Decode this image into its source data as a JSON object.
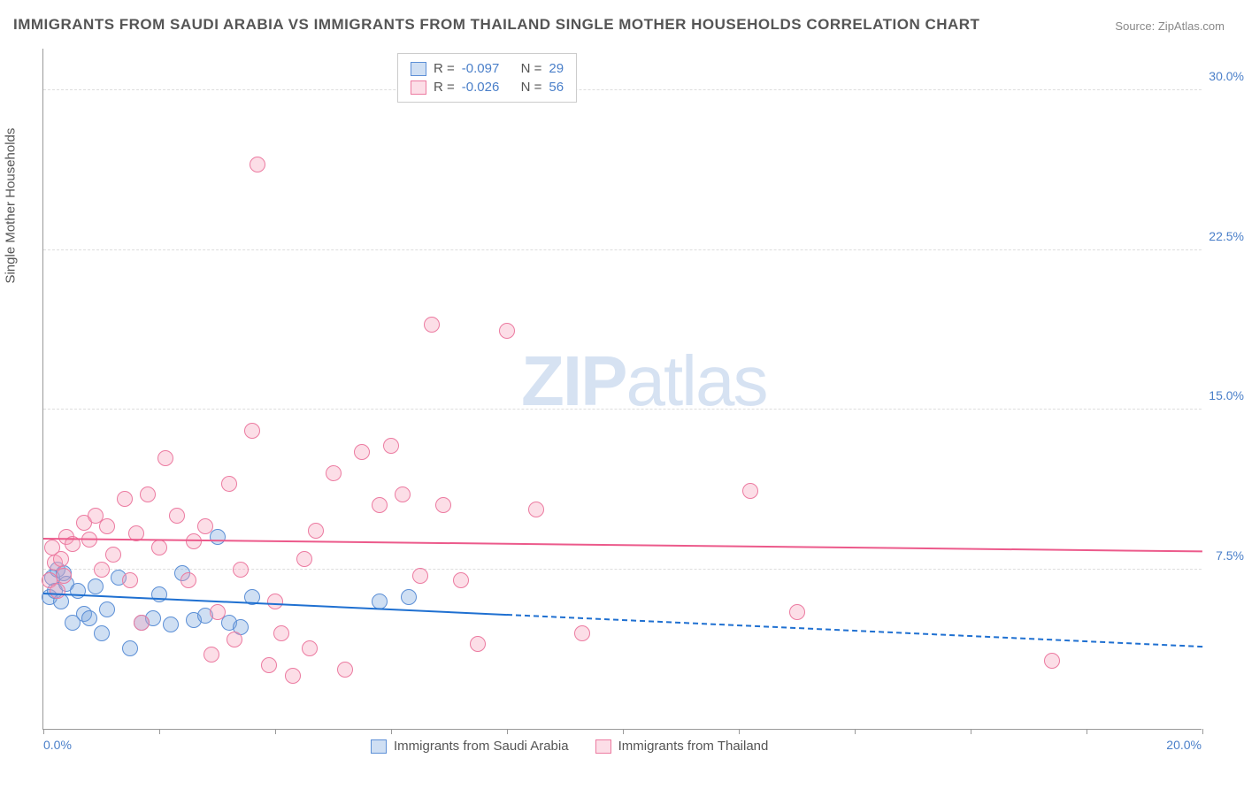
{
  "title": "IMMIGRANTS FROM SAUDI ARABIA VS IMMIGRANTS FROM THAILAND SINGLE MOTHER HOUSEHOLDS CORRELATION CHART",
  "source_label": "Source:",
  "source_value": "ZipAtlas.com",
  "watermark_bold": "ZIP",
  "watermark_rest": "atlas",
  "y_axis_label": "Single Mother Households",
  "chart": {
    "type": "scatter",
    "xlim": [
      0,
      20
    ],
    "ylim": [
      0,
      32
    ],
    "ytick_values": [
      7.5,
      15.0,
      22.5,
      30.0
    ],
    "ytick_labels": [
      "7.5%",
      "15.0%",
      "22.5%",
      "30.0%"
    ],
    "xtick_values": [
      0,
      2,
      4,
      6,
      8,
      10,
      12,
      14,
      16,
      18,
      20
    ],
    "x_left_label": "0.0%",
    "x_right_label": "20.0%",
    "background_color": "#ffffff",
    "grid_color": "#dddddd",
    "axis_color": "#999999",
    "tick_label_color": "#4a7fc9",
    "point_radius": 9
  },
  "series": [
    {
      "name": "Immigrants from Saudi Arabia",
      "color_fill": "rgba(117,164,222,0.35)",
      "color_stroke": "#5c8fd6",
      "R": "-0.097",
      "N": "29",
      "trend": {
        "x1": 0,
        "y1": 6.3,
        "x2_solid": 8,
        "x2_total": 20,
        "y2": 3.8,
        "color": "#1f70d1",
        "width": 2
      },
      "points": [
        [
          0.1,
          6.2
        ],
        [
          0.15,
          7.1
        ],
        [
          0.2,
          6.5
        ],
        [
          0.25,
          7.5
        ],
        [
          0.3,
          6.0
        ],
        [
          0.35,
          7.3
        ],
        [
          0.4,
          6.8
        ],
        [
          0.5,
          5.0
        ],
        [
          0.6,
          6.5
        ],
        [
          0.7,
          5.4
        ],
        [
          0.8,
          5.2
        ],
        [
          0.9,
          6.7
        ],
        [
          1.0,
          4.5
        ],
        [
          1.1,
          5.6
        ],
        [
          1.3,
          7.1
        ],
        [
          1.5,
          3.8
        ],
        [
          1.7,
          5.0
        ],
        [
          1.9,
          5.2
        ],
        [
          2.0,
          6.3
        ],
        [
          2.2,
          4.9
        ],
        [
          2.4,
          7.3
        ],
        [
          2.6,
          5.1
        ],
        [
          2.8,
          5.3
        ],
        [
          3.0,
          9.0
        ],
        [
          3.2,
          5.0
        ],
        [
          3.4,
          4.8
        ],
        [
          3.6,
          6.2
        ],
        [
          5.8,
          6.0
        ],
        [
          6.3,
          6.2
        ]
      ]
    },
    {
      "name": "Immigrants from Thailand",
      "color_fill": "rgba(245,160,185,0.35)",
      "color_stroke": "#ec7ba1",
      "R": "-0.026",
      "N": "56",
      "trend": {
        "x1": 0,
        "y1": 8.9,
        "x2_solid": 20,
        "x2_total": 20,
        "y2": 8.3,
        "color": "#ec5a8b",
        "width": 2
      },
      "points": [
        [
          0.1,
          7.0
        ],
        [
          0.15,
          8.5
        ],
        [
          0.2,
          7.8
        ],
        [
          0.25,
          6.5
        ],
        [
          0.3,
          8.0
        ],
        [
          0.35,
          7.2
        ],
        [
          0.4,
          9.0
        ],
        [
          0.5,
          8.7
        ],
        [
          0.7,
          9.7
        ],
        [
          0.8,
          8.9
        ],
        [
          0.9,
          10.0
        ],
        [
          1.0,
          7.5
        ],
        [
          1.1,
          9.5
        ],
        [
          1.2,
          8.2
        ],
        [
          1.4,
          10.8
        ],
        [
          1.5,
          7.0
        ],
        [
          1.6,
          9.2
        ],
        [
          1.8,
          11.0
        ],
        [
          2.0,
          8.5
        ],
        [
          2.1,
          12.7
        ],
        [
          2.3,
          10.0
        ],
        [
          2.5,
          7.0
        ],
        [
          2.6,
          8.8
        ],
        [
          2.8,
          9.5
        ],
        [
          3.0,
          5.5
        ],
        [
          3.2,
          11.5
        ],
        [
          3.4,
          7.5
        ],
        [
          3.6,
          14.0
        ],
        [
          3.7,
          26.5
        ],
        [
          3.9,
          3.0
        ],
        [
          4.1,
          4.5
        ],
        [
          4.3,
          2.5
        ],
        [
          4.5,
          8.0
        ],
        [
          4.7,
          9.3
        ],
        [
          5.0,
          12.0
        ],
        [
          5.2,
          2.8
        ],
        [
          5.5,
          13.0
        ],
        [
          5.8,
          10.5
        ],
        [
          6.0,
          13.3
        ],
        [
          6.2,
          11.0
        ],
        [
          6.5,
          7.2
        ],
        [
          6.7,
          19.0
        ],
        [
          6.9,
          10.5
        ],
        [
          7.2,
          7.0
        ],
        [
          7.5,
          4.0
        ],
        [
          8.0,
          18.7
        ],
        [
          8.5,
          10.3
        ],
        [
          9.3,
          4.5
        ],
        [
          12.2,
          11.2
        ],
        [
          13.0,
          5.5
        ],
        [
          17.4,
          3.2
        ],
        [
          1.7,
          5.0
        ],
        [
          2.9,
          3.5
        ],
        [
          3.3,
          4.2
        ],
        [
          4.0,
          6.0
        ],
        [
          4.6,
          3.8
        ]
      ]
    }
  ],
  "legend": {
    "R_label": "R =",
    "N_label": "N ="
  }
}
